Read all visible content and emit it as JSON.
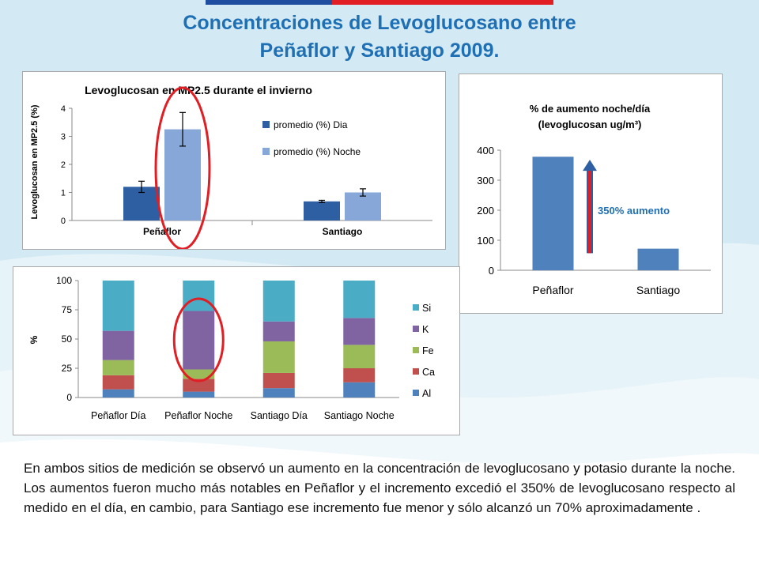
{
  "page": {
    "title_line1": "Concentraciones de Levoglucosano entre",
    "title_line2": "Peñaflor y Santiago 2009.",
    "description": "En ambos sitios de medición se observó un aumento en la concentración de levoglucosano y potasio durante la noche. Los aumentos fueron mucho más notables en Peñaflor y el incremento excedió el 350% de levoglucosano respecto al medido en el día, en cambio, para Santiago ese incremento fue menor y sólo alcanzó un 70% aproximadamente .",
    "colors": {
      "title": "#1f6fb4",
      "highlight": "#e01e24",
      "annotation": "#1f6fb4"
    }
  },
  "chart_data": [
    {
      "type": "bar",
      "title": "Levoglucosan en MP2.5 durante el invierno",
      "xlabel": "",
      "ylabel": "Levoglucosan en MP2.5 (%)",
      "categories": [
        "Peñaflor",
        "Santiago"
      ],
      "ylim": [
        0,
        4
      ],
      "yticks": [
        "0",
        "1",
        "2",
        "3",
        "4"
      ],
      "series": [
        {
          "name": "promedio (%) Dia",
          "values": [
            1.2,
            0.68
          ],
          "errors": [
            0.2,
            0.04
          ],
          "color": "#2e5fa3"
        },
        {
          "name": "promedio (%) Noche",
          "values": [
            3.25,
            1.0
          ],
          "errors": [
            0.6,
            0.13
          ],
          "color": "#86a7d8"
        }
      ],
      "legend_position": "right",
      "grid": false,
      "highlight": "Peñaflor"
    },
    {
      "type": "bar",
      "title_line1": "% de aumento noche/día",
      "title_line2": "(levoglucosan ug/m³)",
      "xlabel": "",
      "ylabel": "",
      "categories": [
        "Peñaflor",
        "Santiago"
      ],
      "values": [
        378,
        72
      ],
      "ylim": [
        0,
        400
      ],
      "yticks": [
        "0",
        "100",
        "200",
        "300",
        "400"
      ],
      "color": "#4f81bd",
      "annotation": "350% aumento",
      "grid": false
    },
    {
      "type": "bar",
      "stacked": true,
      "title": "",
      "xlabel": "",
      "ylabel": "%",
      "categories": [
        "Peñaflor Día",
        "Peñaflor Noche",
        "Santiago Día",
        "Santiago Noche"
      ],
      "ylim": [
        0,
        100
      ],
      "yticks": [
        "0",
        "25",
        "50",
        "75",
        "100"
      ],
      "series": [
        {
          "name": "Al",
          "values": [
            7,
            5,
            8,
            13
          ],
          "color": "#4f81bd"
        },
        {
          "name": "Ca",
          "values": [
            12,
            11,
            13,
            12
          ],
          "color": "#c0504d"
        },
        {
          "name": "Fe",
          "values": [
            13,
            8,
            27,
            20
          ],
          "color": "#9bbb59"
        },
        {
          "name": "K",
          "values": [
            25,
            50,
            17,
            23
          ],
          "color": "#8064a2"
        },
        {
          "name": "Si",
          "values": [
            43,
            26,
            35,
            32
          ],
          "color": "#4bacc6"
        }
      ],
      "legend_position": "right",
      "grid": false,
      "highlight": "Peñaflor Noche"
    }
  ]
}
